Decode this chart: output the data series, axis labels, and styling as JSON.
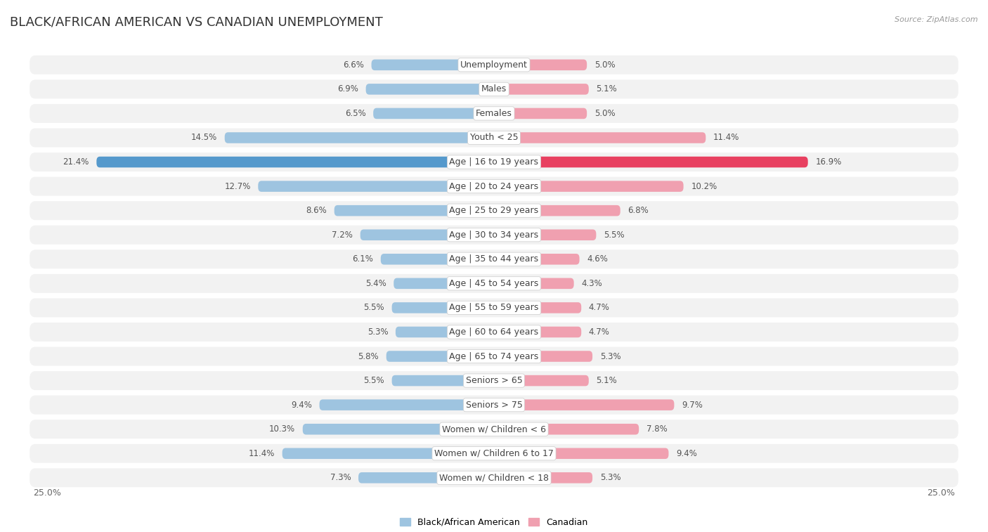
{
  "title": "BLACK/AFRICAN AMERICAN VS CANADIAN UNEMPLOYMENT",
  "source": "Source: ZipAtlas.com",
  "categories": [
    "Unemployment",
    "Males",
    "Females",
    "Youth < 25",
    "Age | 16 to 19 years",
    "Age | 20 to 24 years",
    "Age | 25 to 29 years",
    "Age | 30 to 34 years",
    "Age | 35 to 44 years",
    "Age | 45 to 54 years",
    "Age | 55 to 59 years",
    "Age | 60 to 64 years",
    "Age | 65 to 74 years",
    "Seniors > 65",
    "Seniors > 75",
    "Women w/ Children < 6",
    "Women w/ Children 6 to 17",
    "Women w/ Children < 18"
  ],
  "black_values": [
    6.6,
    6.9,
    6.5,
    14.5,
    21.4,
    12.7,
    8.6,
    7.2,
    6.1,
    5.4,
    5.5,
    5.3,
    5.8,
    5.5,
    9.4,
    10.3,
    11.4,
    7.3
  ],
  "canadian_values": [
    5.0,
    5.1,
    5.0,
    11.4,
    16.9,
    10.2,
    6.8,
    5.5,
    4.6,
    4.3,
    4.7,
    4.7,
    5.3,
    5.1,
    9.7,
    7.8,
    9.4,
    5.3
  ],
  "black_color": "#9ec4e0",
  "canadian_color": "#f0a0b0",
  "black_highlight_color": "#5599cc",
  "canadian_highlight_color": "#e84060",
  "highlight_row": 4,
  "max_val": 25.0,
  "row_bg_color": "#f2f2f2",
  "row_gap_color": "#ffffff",
  "title_fontsize": 13,
  "label_fontsize": 9,
  "axis_fontsize": 9,
  "value_fontsize": 8.5
}
